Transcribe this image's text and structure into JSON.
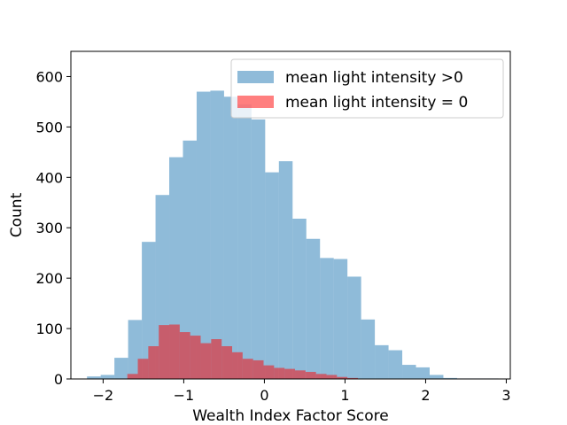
{
  "chart_data": {
    "type": "bar",
    "xlabel": "Wealth Index Factor Score",
    "ylabel": "Count",
    "xlim": [
      -2.4,
      3.05
    ],
    "ylim": [
      0,
      650
    ],
    "x_ticks": [
      {
        "value": -2,
        "label": "−2"
      },
      {
        "value": -1,
        "label": "−1"
      },
      {
        "value": 0,
        "label": "0"
      },
      {
        "value": 1,
        "label": "1"
      },
      {
        "value": 2,
        "label": "2"
      },
      {
        "value": 3,
        "label": "3"
      }
    ],
    "y_ticks": [
      {
        "value": 0,
        "label": "0"
      },
      {
        "value": 100,
        "label": "100"
      },
      {
        "value": 200,
        "label": "200"
      },
      {
        "value": 300,
        "label": "300"
      },
      {
        "value": 400,
        "label": "400"
      },
      {
        "value": 500,
        "label": "500"
      },
      {
        "value": 600,
        "label": "600"
      }
    ],
    "legend_position": "top-right",
    "series": [
      {
        "name": "mean light intensity >0",
        "color": "#1f77b4",
        "opacity": 0.5,
        "bin_edges": [
          -2.2,
          -2.03,
          -1.86,
          -1.69,
          -1.52,
          -1.35,
          -1.18,
          -1.01,
          -0.84,
          -0.67,
          -0.5,
          -0.33,
          -0.16,
          0.01,
          0.18,
          0.35,
          0.52,
          0.69,
          0.86,
          1.03,
          1.2,
          1.37,
          1.54,
          1.71,
          1.88,
          2.05,
          2.22,
          2.39,
          2.56,
          2.73,
          2.9
        ],
        "counts": [
          5,
          8,
          42,
          117,
          272,
          365,
          440,
          473,
          570,
          572,
          560,
          545,
          515,
          410,
          432,
          318,
          278,
          240,
          238,
          203,
          118,
          67,
          57,
          28,
          23,
          8,
          2,
          1,
          1,
          1
        ]
      },
      {
        "name": "mean light intensity = 0",
        "color": "#ff0000",
        "opacity": 0.5,
        "bin_edges": [
          -1.7,
          -1.57,
          -1.44,
          -1.31,
          -1.18,
          -1.05,
          -0.92,
          -0.79,
          -0.66,
          -0.53,
          -0.4,
          -0.27,
          -0.14,
          -0.01,
          0.12,
          0.25,
          0.38,
          0.51,
          0.64,
          0.77,
          0.9,
          1.03,
          1.16
        ],
        "counts": [
          10,
          40,
          65,
          107,
          108,
          93,
          86,
          71,
          79,
          65,
          53,
          40,
          37,
          27,
          22,
          20,
          17,
          14,
          10,
          8,
          4,
          2
        ]
      }
    ]
  }
}
